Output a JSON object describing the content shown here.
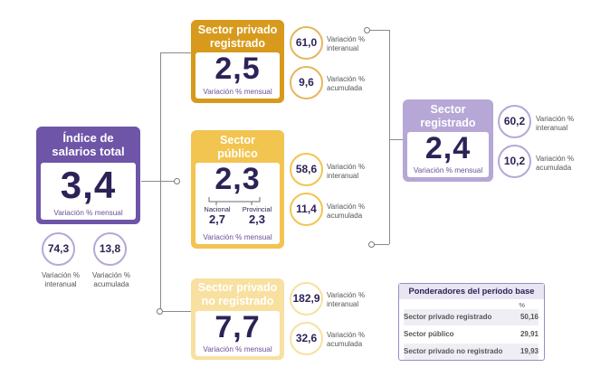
{
  "total": {
    "title": "Índice de salarios total",
    "value": "3,4",
    "caption": "Variación % mensual",
    "interanual": {
      "value": "74,3",
      "label": "Variación % interanual"
    },
    "acumulada": {
      "value": "13,8",
      "label": "Variación % acumulada"
    }
  },
  "privado_registrado": {
    "title": "Sector privado registrado",
    "value": "2,5",
    "caption": "Variación % mensual",
    "interanual": {
      "value": "61,0",
      "label": "Variación % interanual"
    },
    "acumulada": {
      "value": "9,6",
      "label": "Variación % acumulada"
    }
  },
  "publico": {
    "title": "Sector público",
    "value": "2,3",
    "caption": "Variación % mensual",
    "nacional": {
      "label": "Nacional",
      "value": "2,7"
    },
    "provincial": {
      "label": "Provincial",
      "value": "2,3"
    },
    "interanual": {
      "value": "58,6",
      "label": "Variación % interanual"
    },
    "acumulada": {
      "value": "11,4",
      "label": "Variación % acumulada"
    }
  },
  "no_registrado": {
    "title": "Sector privado no registrado",
    "value": "7,7",
    "caption": "Variación % mensual",
    "interanual": {
      "value": "182,9",
      "label": "Variación % interanual"
    },
    "acumulada": {
      "value": "32,6",
      "label": "Variación % acumulada"
    }
  },
  "registrado": {
    "title": "Sector registrado",
    "value": "2,4",
    "caption": "Variación % mensual",
    "interanual": {
      "value": "60,2",
      "label": "Variación % interanual"
    },
    "acumulada": {
      "value": "10,2",
      "label": "Variación % acumulada"
    }
  },
  "ponderadores": {
    "title": "Ponderadores del período base",
    "unit": "%",
    "rows": [
      {
        "label": "Sector privado registrado",
        "value": "50,16"
      },
      {
        "label": "Sector público",
        "value": "29,91"
      },
      {
        "label": "Sector privado no registrado",
        "value": "19,93"
      }
    ]
  },
  "colors": {
    "purple": "#6e55a8",
    "purple_light": "#b6a7d6",
    "gold": "#d89a1c",
    "yellow": "#f2c450",
    "yellow_pale": "#f8e0a0",
    "navy": "#2d2257"
  }
}
